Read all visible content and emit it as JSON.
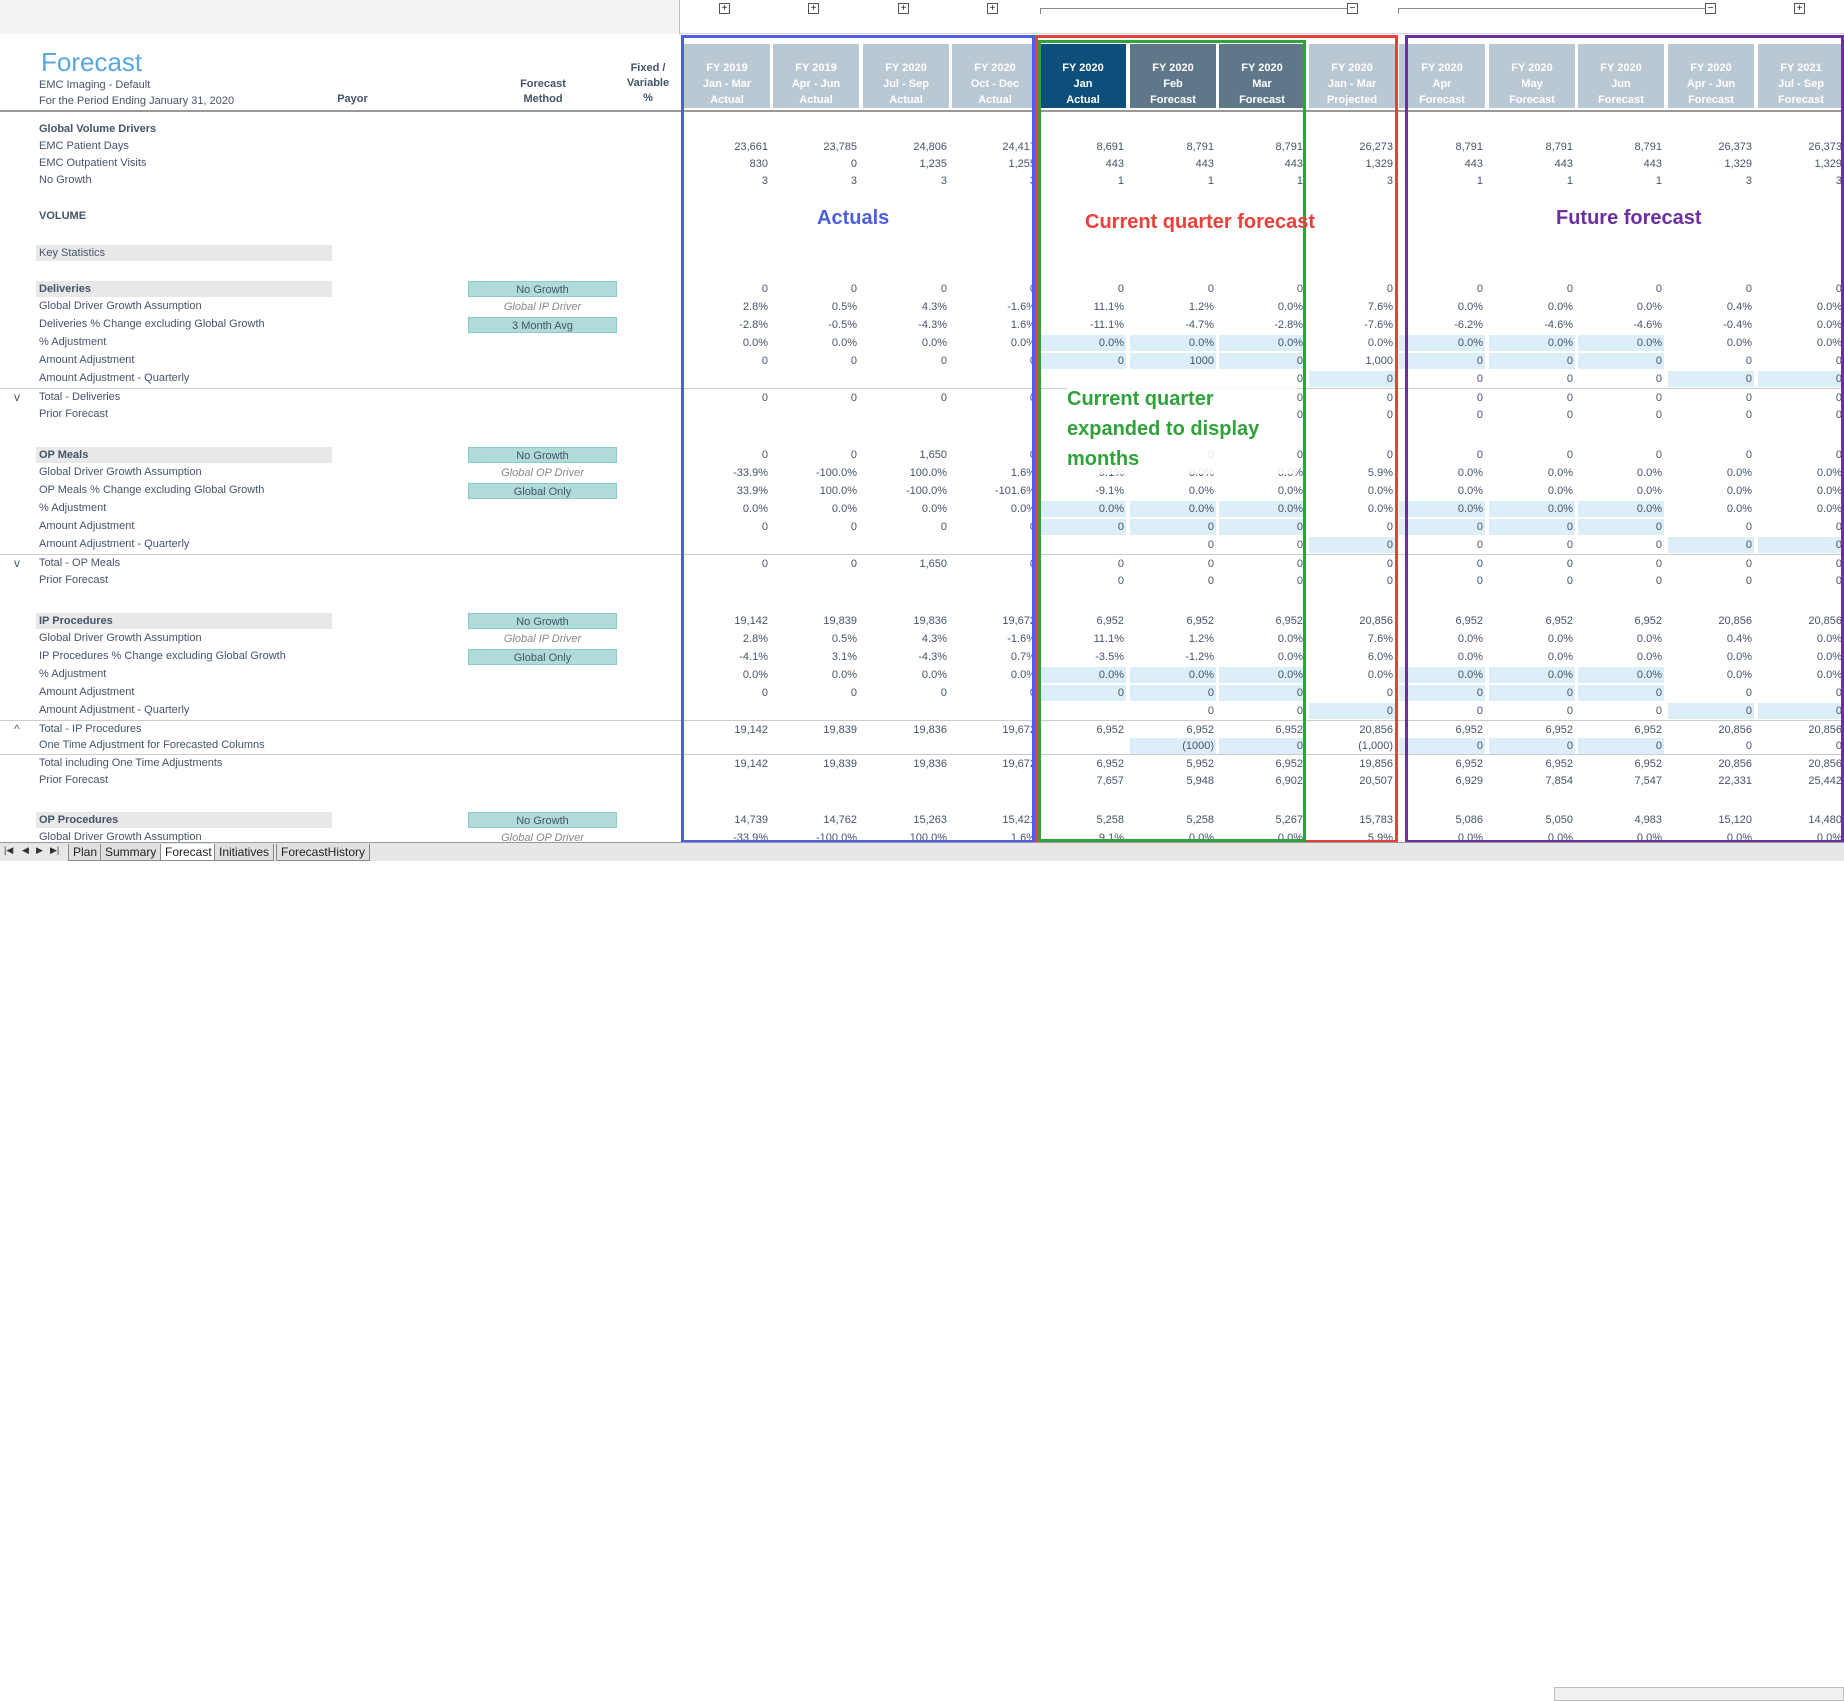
{
  "app": {
    "title": "Forecast",
    "subtitle1": "EMC Imaging - Default",
    "subtitle2": "For the Period Ending January 31, 2020",
    "payor_header": "Payor",
    "method_header": "Forecast\nMethod",
    "fixed_header": "Fixed /\nVariable\n%"
  },
  "columns": [
    {
      "l1": "FY 2019",
      "l2": "Jan - Mar",
      "l3": "Actual"
    },
    {
      "l1": "FY 2019",
      "l2": "Apr - Jun",
      "l3": "Actual"
    },
    {
      "l1": "FY 2020",
      "l2": "Jul - Sep",
      "l3": "Actual"
    },
    {
      "l1": "FY 2020",
      "l2": "Oct - Dec",
      "l3": "Actual"
    },
    {
      "l1": "FY 2020",
      "l2": "Jan",
      "l3": "Actual"
    },
    {
      "l1": "FY 2020",
      "l2": "Feb",
      "l3": "Forecast"
    },
    {
      "l1": "FY 2020",
      "l2": "Mar",
      "l3": "Forecast"
    },
    {
      "l1": "FY 2020",
      "l2": "Jan - Mar",
      "l3": "Projected"
    },
    {
      "l1": "FY 2020",
      "l2": "Apr",
      "l3": "Forecast"
    },
    {
      "l1": "FY 2020",
      "l2": "May",
      "l3": "Forecast"
    },
    {
      "l1": "FY 2020",
      "l2": "Jun",
      "l3": "Forecast"
    },
    {
      "l1": "FY 2020",
      "l2": "Apr - Jun",
      "l3": "Forecast"
    },
    {
      "l1": "FY 2021",
      "l2": "Jul - Sep",
      "l3": "Forecast"
    }
  ],
  "annotations": {
    "actuals": "Actuals",
    "current_quarter": "Current quarter forecast",
    "future": "Future forecast",
    "expanded": "Current quarter expanded to display months",
    "colors": {
      "actuals": "#4d5fe0",
      "current": "#e8413b",
      "expanded": "#2fa33a",
      "future": "#6b2fa0"
    }
  },
  "rows": [
    {
      "label": "Global Volume Drivers",
      "bold": true,
      "vals": []
    },
    {
      "label": "EMC Patient Days",
      "vals": [
        "23,661",
        "23,785",
        "24,806",
        "24,417",
        "8,691",
        "8,791",
        "8,791",
        "26,273",
        "8,791",
        "8,791",
        "8,791",
        "26,373",
        "26,373"
      ]
    },
    {
      "label": "EMC Outpatient Visits",
      "vals": [
        "830",
        "0",
        "1,235",
        "1,255",
        "443",
        "443",
        "443",
        "1,329",
        "443",
        "443",
        "443",
        "1,329",
        "1,329"
      ]
    },
    {
      "label": "No Growth",
      "vals": [
        "3",
        "3",
        "3",
        "3",
        "1",
        "1",
        "1",
        "3",
        "1",
        "1",
        "1",
        "3",
        "3"
      ]
    },
    {
      "label": "VOLUME",
      "bold": true,
      "vals": []
    },
    {
      "label": "Key Statistics",
      "section": true,
      "vals": []
    },
    {
      "label": "Deliveries",
      "bold": true,
      "section": true,
      "method": "No Growth",
      "mbox": true,
      "vals": [
        "0",
        "0",
        "0",
        "0",
        "0",
        "0",
        "0",
        "0",
        "0",
        "0",
        "0",
        "0",
        "0"
      ]
    },
    {
      "label": "Global Driver Growth Assumption",
      "method": "Global IP Driver",
      "mit": true,
      "vals": [
        "2.8%",
        "0.5%",
        "4.3%",
        "-1.6%",
        "11.1%",
        "1.2%",
        "0.0%",
        "7.6%",
        "0.0%",
        "0.0%",
        "0.0%",
        "0.4%",
        "0.0%"
      ]
    },
    {
      "label": "Deliveries % Change excluding Global Growth",
      "method": "3 Month Avg",
      "mbox": true,
      "vals": [
        "-2.8%",
        "-0.5%",
        "-4.3%",
        "1.6%",
        "-11.1%",
        "-4.7%",
        "-2.8%",
        "-7.6%",
        "-6.2%",
        "-4.6%",
        "-4.6%",
        "-0.4%",
        "0.0%"
      ]
    },
    {
      "label": "% Adjustment",
      "shade": [
        4,
        5,
        6,
        8,
        9,
        10
      ],
      "vals": [
        "0.0%",
        "0.0%",
        "0.0%",
        "0.0%",
        "0.0%",
        "0.0%",
        "0.0%",
        "0.0%",
        "0.0%",
        "0.0%",
        "0.0%",
        "0.0%",
        "0.0%"
      ]
    },
    {
      "label": "Amount Adjustment",
      "shade": [
        4,
        5,
        6,
        8,
        9,
        10
      ],
      "vals": [
        "0",
        "0",
        "0",
        "0",
        "0",
        "1000",
        "0",
        "1,000",
        "0",
        "0",
        "0",
        "0",
        "0"
      ]
    },
    {
      "label": "Amount Adjustment - Quarterly",
      "shade": [
        7,
        11,
        12
      ],
      "vals": [
        "",
        "",
        "",
        "",
        "",
        "",
        "0",
        "0",
        "0",
        "0",
        "0",
        "0",
        "0"
      ]
    },
    {
      "label": "Total - Deliveries",
      "total": true,
      "caret": "v",
      "vals": [
        "0",
        "0",
        "0",
        "0",
        "0",
        "0",
        "0",
        "0",
        "0",
        "0",
        "0",
        "0",
        "0"
      ]
    },
    {
      "label": "Prior Forecast",
      "vals": [
        "",
        "",
        "",
        "",
        "",
        "",
        "0",
        "0",
        "0",
        "0",
        "0",
        "0",
        "0"
      ]
    },
    {
      "label": "OP Meals",
      "bold": true,
      "section": true,
      "method": "No Growth",
      "mbox": true,
      "vals": [
        "0",
        "0",
        "1,650",
        "0",
        "0",
        "0",
        "0",
        "0",
        "0",
        "0",
        "0",
        "0",
        "0"
      ]
    },
    {
      "label": "Global Driver Growth Assumption",
      "method": "Global OP Driver",
      "mit": true,
      "vals": [
        "-33.9%",
        "-100.0%",
        "100.0%",
        "1.6%",
        "9.1%",
        "0.0%",
        "0.0%",
        "5.9%",
        "0.0%",
        "0.0%",
        "0.0%",
        "0.0%",
        "0.0%"
      ]
    },
    {
      "label": "OP Meals % Change excluding Global Growth",
      "method": "Global Only",
      "mbox": true,
      "vals": [
        "33.9%",
        "100.0%",
        "-100.0%",
        "-101.6%",
        "-9.1%",
        "0.0%",
        "0.0%",
        "0.0%",
        "0.0%",
        "0.0%",
        "0.0%",
        "0.0%",
        "0.0%"
      ]
    },
    {
      "label": "% Adjustment",
      "shade": [
        4,
        5,
        6,
        8,
        9,
        10
      ],
      "vals": [
        "0.0%",
        "0.0%",
        "0.0%",
        "0.0%",
        "0.0%",
        "0.0%",
        "0.0%",
        "0.0%",
        "0.0%",
        "0.0%",
        "0.0%",
        "0.0%",
        "0.0%"
      ]
    },
    {
      "label": "Amount Adjustment",
      "shade": [
        4,
        5,
        6,
        8,
        9,
        10
      ],
      "vals": [
        "0",
        "0",
        "0",
        "0",
        "0",
        "0",
        "0",
        "0",
        "0",
        "0",
        "0",
        "0",
        "0"
      ]
    },
    {
      "label": "Amount Adjustment - Quarterly",
      "shade": [
        7,
        11,
        12
      ],
      "vals": [
        "",
        "",
        "",
        "",
        "",
        "0",
        "0",
        "0",
        "0",
        "0",
        "0",
        "0",
        "0"
      ]
    },
    {
      "label": "Total - OP Meals",
      "total": true,
      "caret": "v",
      "vals": [
        "0",
        "0",
        "1,650",
        "0",
        "0",
        "0",
        "0",
        "0",
        "0",
        "0",
        "0",
        "0",
        "0"
      ]
    },
    {
      "label": "Prior Forecast",
      "vals": [
        "",
        "",
        "",
        "",
        "0",
        "0",
        "0",
        "0",
        "0",
        "0",
        "0",
        "0",
        "0"
      ]
    },
    {
      "label": "IP Procedures",
      "bold": true,
      "section": true,
      "method": "No Growth",
      "mbox": true,
      "vals": [
        "19,142",
        "19,839",
        "19,836",
        "19,672",
        "6,952",
        "6,952",
        "6,952",
        "20,856",
        "6,952",
        "6,952",
        "6,952",
        "20,856",
        "20,856"
      ]
    },
    {
      "label": "Global Driver Growth Assumption",
      "method": "Global IP Driver",
      "mit": true,
      "vals": [
        "2.8%",
        "0.5%",
        "4.3%",
        "-1.6%",
        "11.1%",
        "1.2%",
        "0.0%",
        "7.6%",
        "0.0%",
        "0.0%",
        "0.0%",
        "0.4%",
        "0.0%"
      ]
    },
    {
      "label": "IP Procedures % Change excluding Global Growth",
      "method": "Global Only",
      "mbox": true,
      "vals": [
        "-4.1%",
        "3.1%",
        "-4.3%",
        "0.7%",
        "-3.5%",
        "-1.2%",
        "0.0%",
        "6.0%",
        "0.0%",
        "0.0%",
        "0.0%",
        "0.0%",
        "0.0%"
      ]
    },
    {
      "label": "% Adjustment",
      "shade": [
        4,
        5,
        6,
        8,
        9,
        10
      ],
      "vals": [
        "0.0%",
        "0.0%",
        "0.0%",
        "0.0%",
        "0.0%",
        "0.0%",
        "0.0%",
        "0.0%",
        "0.0%",
        "0.0%",
        "0.0%",
        "0.0%",
        "0.0%"
      ]
    },
    {
      "label": "Amount Adjustment",
      "shade": [
        4,
        5,
        6,
        8,
        9,
        10
      ],
      "vals": [
        "0",
        "0",
        "0",
        "0",
        "0",
        "0",
        "0",
        "0",
        "0",
        "0",
        "0",
        "0",
        "0"
      ]
    },
    {
      "label": "Amount Adjustment - Quarterly",
      "shade": [
        7,
        11,
        12
      ],
      "vals": [
        "",
        "",
        "",
        "",
        "",
        "0",
        "0",
        "0",
        "0",
        "0",
        "0",
        "0",
        "0"
      ]
    },
    {
      "label": "Total - IP Procedures",
      "total": true,
      "caret": "^",
      "vals": [
        "19,142",
        "19,839",
        "19,836",
        "19,672",
        "6,952",
        "6,952",
        "6,952",
        "20,856",
        "6,952",
        "6,952",
        "6,952",
        "20,856",
        "20,856"
      ]
    },
    {
      "label": "One Time Adjustment for Forecasted Columns",
      "shade": [
        5,
        6,
        8,
        9,
        10
      ],
      "vals": [
        "",
        "",
        "",
        "",
        "",
        "(1000)",
        "0",
        "(1,000)",
        "0",
        "0",
        "0",
        "0",
        "0"
      ]
    },
    {
      "label": "Total including One Time Adjustments",
      "total": true,
      "vals": [
        "19,142",
        "19,839",
        "19,836",
        "19,672",
        "6,952",
        "5,952",
        "6,952",
        "19,856",
        "6,952",
        "6,952",
        "6,952",
        "20,856",
        "20,856"
      ]
    },
    {
      "label": "Prior Forecast",
      "vals": [
        "",
        "",
        "",
        "",
        "7,657",
        "5,948",
        "6,902",
        "20,507",
        "6,929",
        "7,854",
        "7,547",
        "22,331",
        "25,442"
      ]
    },
    {
      "label": "OP Procedures",
      "bold": true,
      "section": true,
      "method": "No Growth",
      "mbox": true,
      "vals": [
        "14,739",
        "14,762",
        "15,263",
        "15,421",
        "5,258",
        "5,258",
        "5,267",
        "15,783",
        "5,086",
        "5,050",
        "4,983",
        "15,120",
        "14,480"
      ]
    },
    {
      "label": "Global Driver Growth Assumption",
      "method": "Global OP Driver",
      "mit": true,
      "vals": [
        "-33.9%",
        "-100.0%",
        "100.0%",
        "1.6%",
        "9.1%",
        "0.0%",
        "0.0%",
        "5.9%",
        "0.0%",
        "0.0%",
        "0.0%",
        "0.0%",
        "0.0%"
      ]
    }
  ],
  "tabs": [
    "Plan",
    "Summary",
    "Forecast",
    "Initiatives",
    "ForecastHistory"
  ],
  "active_tab": "Forecast"
}
